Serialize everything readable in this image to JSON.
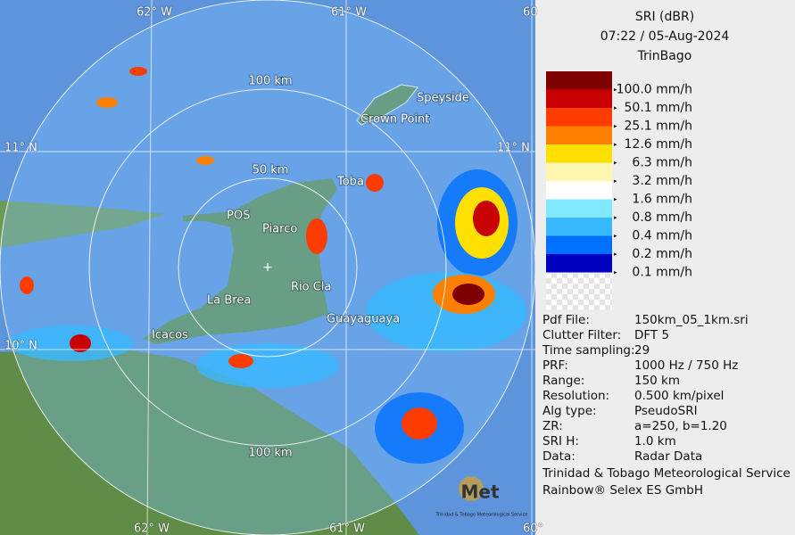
{
  "map": {
    "graticule": {
      "lon_top": [
        "62° W",
        "61° W",
        "60"
      ],
      "lon_bottom": [
        "62° W",
        "61° W",
        "60°"
      ],
      "lat_left": [
        "11° N",
        "10° N"
      ],
      "lat_right": [
        "11° N"
      ]
    },
    "range_rings": [
      "100 km",
      "50 km",
      "100 km"
    ],
    "places": [
      "Speyside",
      "Crown Point",
      "Toba",
      "POS",
      "Piarco",
      "Rio Cla",
      "La Brea",
      "Icacos",
      "Guayaguaya"
    ]
  },
  "panel": {
    "title": "SRI (dBR)",
    "time": "07:22 / 05-Aug-2024",
    "site": "TrinBago",
    "legend": [
      {
        "label": "100.0 mm/h",
        "color": "#7f0000"
      },
      {
        "label": "50.1 mm/h",
        "color": "#c80000"
      },
      {
        "label": "25.1 mm/h",
        "color": "#ff3c00"
      },
      {
        "label": "12.6 mm/h",
        "color": "#ff8000"
      },
      {
        "label": "6.3 mm/h",
        "color": "#ffe000"
      },
      {
        "label": "3.2 mm/h",
        "color": "#fff6b0"
      },
      {
        "label": "1.6 mm/h",
        "color": "#ffffff"
      },
      {
        "label": "0.8 mm/h",
        "color": "#80e8ff"
      },
      {
        "label": "0.4 mm/h",
        "color": "#38b8ff"
      },
      {
        "label": "0.2 mm/h",
        "color": "#0070ff"
      },
      {
        "label": "0.1 mm/h",
        "color": "#0000c0"
      }
    ],
    "info": [
      [
        "Pdf File:",
        "150km_05_1km.sri"
      ],
      [
        "Clutter Filter:",
        "DFT 5"
      ],
      [
        "Time sampling:",
        "29"
      ],
      [
        "PRF:",
        "1000 Hz / 750 Hz"
      ],
      [
        "Range:",
        "150 km"
      ],
      [
        "Resolution:",
        "0.500 km/pixel"
      ],
      [
        "Alg type:",
        "PseudoSRI"
      ],
      [
        "ZR:",
        "a=250, b=1.20"
      ],
      [
        "SRI H:",
        "1.0 km"
      ],
      [
        "Data:",
        "Radar Data"
      ]
    ],
    "footer": [
      "Trinidad & Tobago Meteorological Service",
      "Rainbow® Selex ES GmbH"
    ],
    "logo": {
      "mark": "Met",
      "caption": "Trinidad & Tobago Meteorological Service"
    }
  }
}
